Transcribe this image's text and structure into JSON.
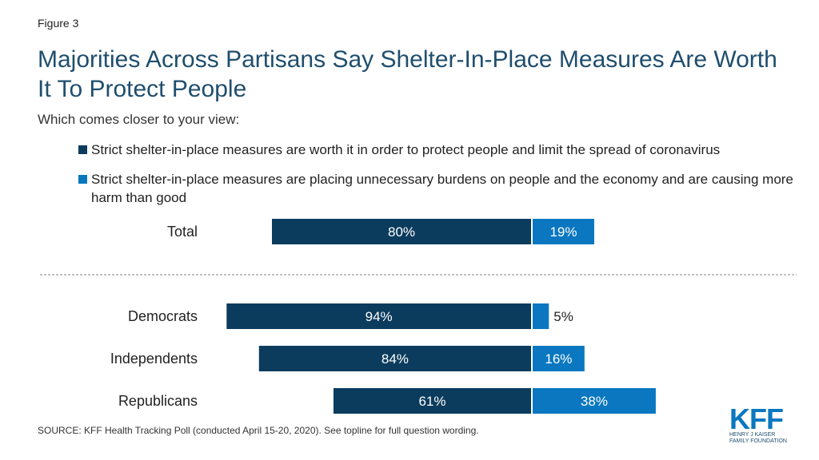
{
  "figure_label": "Figure 3",
  "title": "Majorities Across Partisans Say Shelter-In-Place Measures Are Worth It To Protect People",
  "subtitle": "Which comes closer to your view:",
  "source": "SOURCE: KFF Health Tracking Poll (conducted April 15-20, 2020). See topline for full question wording.",
  "logo": {
    "main": "KFF",
    "line1": "HENRY J KAISER",
    "line2": "FAMILY FOUNDATION"
  },
  "colors": {
    "series1": "#0b3c5d",
    "series2": "#0a77c0",
    "label_light": "#ffffff",
    "label_dark": "#222222",
    "divider": "#888888"
  },
  "chart_data": {
    "type": "bar",
    "orientation": "horizontal-diverging",
    "categories": [
      "Total",
      "Democrats",
      "Independents",
      "Republicans"
    ],
    "series": [
      {
        "name": "Strict shelter-in-place measures are worth it in order to protect people and limit the spread of coronavirus",
        "values": [
          80,
          94,
          84,
          61
        ]
      },
      {
        "name": "Strict shelter-in-place measures are placing unnecessary burdens on people and the economy and are causing more harm than good",
        "values": [
          19,
          5,
          16,
          38
        ]
      }
    ],
    "unit": "%",
    "divider_after_category": "Total",
    "legend_position": "top",
    "grid": false
  }
}
